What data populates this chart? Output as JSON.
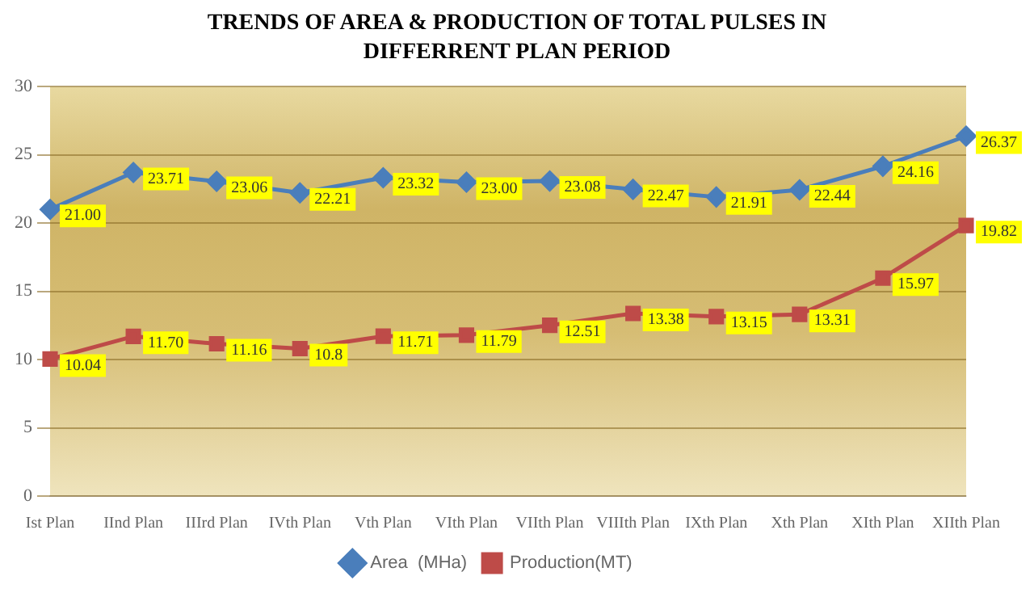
{
  "chart_data": {
    "type": "line",
    "title": "TRENDS OF AREA & PRODUCTION OF TOTAL PULSES IN DIFFERRENT PLAN PERIOD",
    "categories": [
      "Ist Plan",
      "IInd Plan",
      "IIIrd Plan",
      "IVth Plan",
      "Vth Plan",
      "VIth Plan",
      "VIIth Plan",
      "VIIIth Plan",
      "IXth Plan",
      "Xth Plan",
      "XIth Plan",
      "XIIth Plan"
    ],
    "series": [
      {
        "name": "Area  (MHa)",
        "color": "#4a7ebb",
        "marker": "diamond",
        "values": [
          21.0,
          23.71,
          23.06,
          22.21,
          23.32,
          23.0,
          23.08,
          22.47,
          21.91,
          22.44,
          24.16,
          26.37
        ],
        "value_labels": [
          "21.00",
          "23.71",
          "23.06",
          "22.21",
          "23.32",
          "23.00",
          "23.08",
          "22.47",
          "21.91",
          "22.44",
          "24.16",
          "26.37"
        ]
      },
      {
        "name": "Production(MT)",
        "color": "#be4b48",
        "marker": "square",
        "values": [
          10.04,
          11.7,
          11.16,
          10.8,
          11.71,
          11.79,
          12.51,
          13.38,
          13.15,
          13.31,
          15.97,
          19.82
        ],
        "value_labels": [
          "10.04",
          "11.70",
          "11.16",
          "10.8",
          "11.71",
          "11.79",
          "12.51",
          "13.38",
          "13.15",
          "13.31",
          "15.97",
          "19.82"
        ]
      }
    ],
    "ylim": [
      0,
      30
    ],
    "yticks": [
      0,
      5,
      10,
      15,
      20,
      25,
      30
    ],
    "grid": "y",
    "legend": "bottom",
    "line_style": "solid"
  }
}
